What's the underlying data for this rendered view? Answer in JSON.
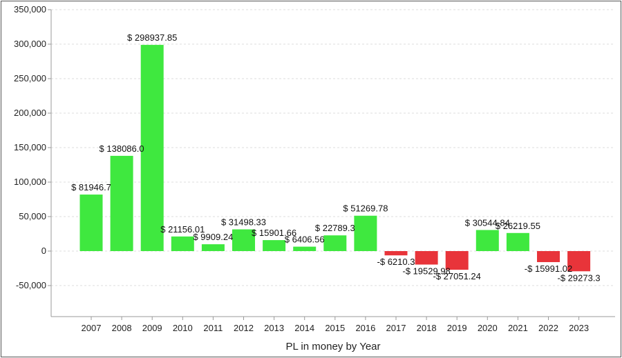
{
  "chart_data": {
    "type": "bar",
    "title": "",
    "xlabel": "PL in money by Year",
    "ylabel": "",
    "ylim": [
      -95000,
      350000
    ],
    "yticks": [
      -50000,
      0,
      50000,
      100000,
      150000,
      200000,
      250000,
      300000,
      350000
    ],
    "ytick_labels": [
      "-50,000",
      "0",
      "50,000",
      "100,000",
      "150,000",
      "200,000",
      "250,000",
      "300,000",
      "350,000"
    ],
    "grid": true,
    "legend": "none",
    "categories": [
      "2007",
      "2008",
      "2009",
      "2010",
      "2011",
      "2012",
      "2013",
      "2014",
      "2015",
      "2016",
      "2017",
      "2018",
      "2019",
      "2020",
      "2021",
      "2022",
      "2023"
    ],
    "values": [
      81946.7,
      138086.0,
      298937.85,
      21156.01,
      9909.24,
      31498.33,
      15901.66,
      6406.56,
      22789.3,
      51269.78,
      -6210.3,
      -19529.98,
      -27051.24,
      30544.84,
      26219.55,
      -15991.02,
      -29273.3
    ],
    "data_labels": [
      "$ 81946.7",
      "$ 138086.0",
      "$ 298937.85",
      "$ 21156.01",
      "$ 9909.24",
      "$ 31498.33",
      "$ 15901.66",
      "$ 6406.56",
      "$ 22789.3",
      "$ 51269.78",
      "-$ 6210.3",
      "-$ 19529.98",
      "-$ 27051.24",
      "$ 30544.84",
      "$ 26219.55",
      "-$ 15991.02",
      "-$ 29273.3"
    ],
    "colors": {
      "positive": "#3fe83f",
      "negative": "#e8343a",
      "grid": "#dddddd",
      "axis": "#999999"
    }
  }
}
